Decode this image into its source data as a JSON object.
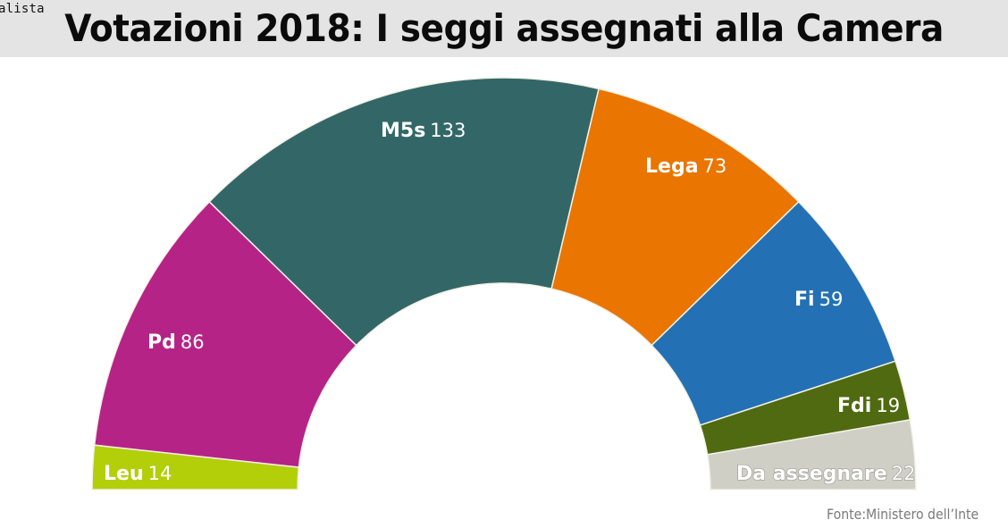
{
  "corner_tag": "alista",
  "title": "Votazioni 2018: I seggi assegnati alla Camera",
  "source": "Fonte:Ministero dell’Inte",
  "colors": {
    "header_bg": "#e4e4e4",
    "Leu": "#b2cf0a",
    "Pd": "#b62386",
    "M5s": "#336767",
    "Lega": "#ea7500",
    "Fi": "#2371b4",
    "Fdi": "#4f6a10",
    "Da assegnare": "#cfcfc6"
  },
  "chart_data": {
    "type": "pie",
    "subtype": "semicircle-donut (parliament)",
    "title": "Votazioni 2018: I seggi assegnati alla Camera",
    "categories": [
      "Leu",
      "Pd",
      "M5s",
      "Lega",
      "Fi",
      "Fdi",
      "Da assegnare"
    ],
    "values": [
      14,
      86,
      133,
      73,
      59,
      19,
      22
    ],
    "total": 406,
    "colors": [
      "#b2cf0a",
      "#b62386",
      "#336767",
      "#ea7500",
      "#2371b4",
      "#4f6a10",
      "#cfcfc6"
    ],
    "order": "left-to-right along the arc",
    "source": "Fonte:Ministero dell’Inte",
    "legend": "none (inline labels)",
    "grid": false
  },
  "labels": [
    {
      "name": "Leu",
      "value": "14"
    },
    {
      "name": "Pd",
      "value": "86"
    },
    {
      "name": "M5s",
      "value": "133"
    },
    {
      "name": "Lega",
      "value": "73"
    },
    {
      "name": "Fi",
      "value": "59"
    },
    {
      "name": "Fdi",
      "value": "19"
    },
    {
      "name": "Da assegnare",
      "value": "22"
    }
  ]
}
